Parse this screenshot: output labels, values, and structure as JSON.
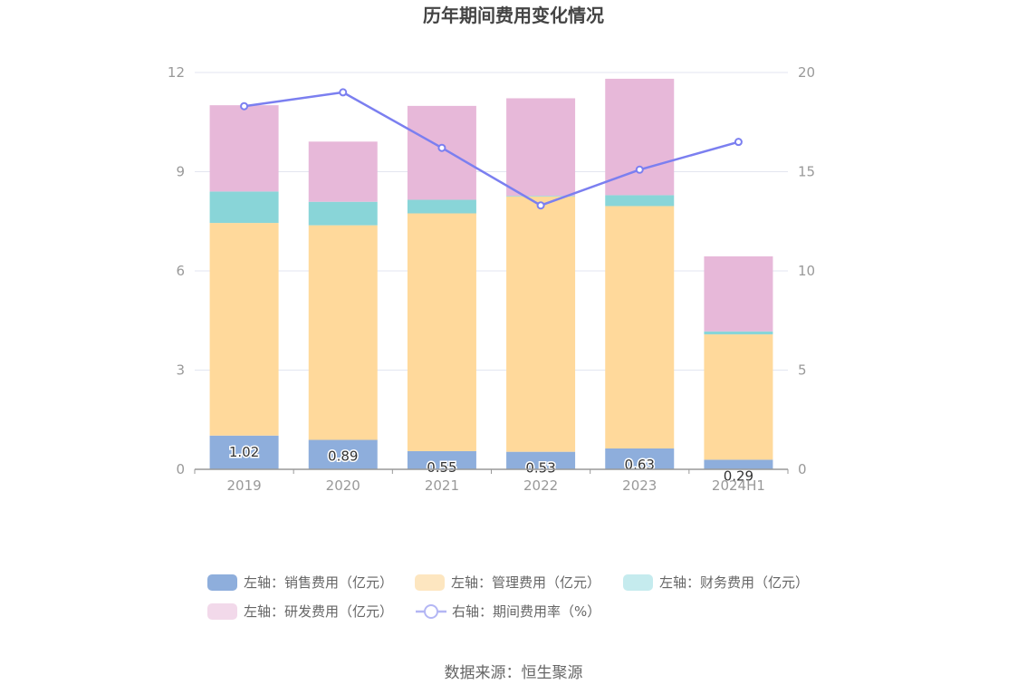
{
  "chart_data": {
    "type": "bar",
    "title": "历年期间费用变化情况",
    "categories": [
      "2019",
      "2020",
      "2021",
      "2022",
      "2023",
      "2024H1"
    ],
    "y_left": {
      "ylim": [
        0,
        12
      ],
      "ticks": [
        "0",
        "3",
        "6",
        "9",
        "12"
      ]
    },
    "y_right": {
      "ylim": [
        0,
        20
      ],
      "ticks": [
        "0",
        "5",
        "10",
        "15",
        "20"
      ]
    },
    "grid": true,
    "legend_position": "bottom",
    "series": [
      {
        "name": "左轴：销售费用（亿元）",
        "axis": "left",
        "stack": true,
        "color": "#8eaedc",
        "values": [
          1.02,
          0.89,
          0.55,
          0.53,
          0.63,
          0.29
        ],
        "labels": [
          "1.02",
          "0.89",
          "0.55",
          "0.53",
          "0.63",
          "0.29"
        ]
      },
      {
        "name": "左轴：管理费用（亿元）",
        "axis": "left",
        "stack": true,
        "color": "#ffd99b",
        "values": [
          6.43,
          6.49,
          7.19,
          7.72,
          7.33,
          3.79
        ]
      },
      {
        "name": "左轴：财务费用（亿元）",
        "axis": "left",
        "stack": true,
        "color": "#89d5d8",
        "values": [
          0.95,
          0.71,
          0.41,
          0.02,
          0.33,
          0.09
        ]
      },
      {
        "name": "左轴：研发费用（亿元）",
        "axis": "left",
        "stack": true,
        "color": "#e7b8d9",
        "values": [
          2.61,
          1.82,
          2.84,
          2.95,
          3.52,
          2.27
        ]
      },
      {
        "name": "右轴：期间费用率（%）",
        "axis": "right",
        "type": "line",
        "color": "#7b7ff0",
        "values": [
          18.3,
          19.0,
          16.2,
          13.3,
          15.1,
          16.5
        ]
      }
    ]
  },
  "source": "数据来源：恒生聚源"
}
